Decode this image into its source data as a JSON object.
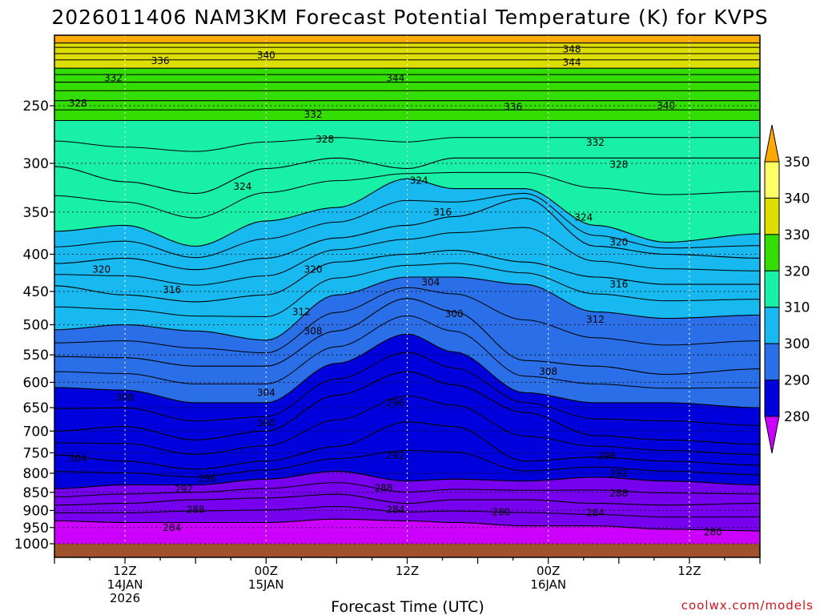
{
  "chart_data": {
    "type": "heatmap",
    "title": "2026011406 NAM3KM Forecast Potential Temperature (K) for KVPS",
    "xlabel": "Forecast Time (UTC)",
    "ylabel": "",
    "credit": "coolwx.com/models",
    "y_scale": "log-pressure",
    "y_range_hpa": [
      1000,
      200
    ],
    "x_range_hours": [
      0,
      60
    ],
    "y_ticks": [
      250,
      300,
      350,
      400,
      450,
      500,
      550,
      600,
      650,
      700,
      750,
      800,
      850,
      900,
      950,
      1000
    ],
    "x_ticks": [
      {
        "hour": 6,
        "lines": [
          "12Z",
          "14JAN",
          "2026"
        ]
      },
      {
        "hour": 18,
        "lines": [
          "00Z",
          "15JAN"
        ]
      },
      {
        "hour": 30,
        "lines": [
          "12Z"
        ]
      },
      {
        "hour": 42,
        "lines": [
          "00Z",
          "16JAN"
        ]
      },
      {
        "hour": 54,
        "lines": [
          "12Z"
        ]
      }
    ],
    "colorbar": {
      "levels": [
        280,
        290,
        300,
        310,
        320,
        330,
        340,
        350
      ],
      "colors": [
        "#cc00ff",
        "#7700ee",
        "#0000dd",
        "#2a6fe8",
        "#18b9f0",
        "#18f0a8",
        "#33dd00",
        "#dddd00",
        "#ffff66",
        "#ffaa00"
      ],
      "extend": "both"
    },
    "levels_k": [
      348,
      344,
      340,
      336,
      332,
      328,
      324,
      320,
      316,
      312,
      308,
      304,
      300,
      296,
      292,
      288,
      284,
      280
    ],
    "isentrope_profiles": [
      {
        "hour": 0,
        "pressures_hpa": [
          205,
          212,
          222,
          232,
          246,
          262,
          303,
          372,
          412,
          442,
          508,
          553,
          610,
          700,
          755,
          840,
          885,
          930
        ]
      },
      {
        "hour": 6,
        "pressures_hpa": [
          205,
          212,
          222,
          232,
          246,
          262,
          318,
          365,
          405,
          455,
          500,
          555,
          615,
          690,
          770,
          830,
          880,
          935
        ]
      },
      {
        "hour": 12,
        "pressures_hpa": [
          205,
          212,
          222,
          232,
          246,
          262,
          330,
          390,
          420,
          465,
          510,
          570,
          640,
          720,
          790,
          830,
          870,
          935
        ]
      },
      {
        "hour": 18,
        "pressures_hpa": [
          205,
          212,
          222,
          232,
          246,
          262,
          305,
          360,
          405,
          455,
          525,
          570,
          640,
          700,
          770,
          815,
          865,
          935
        ]
      },
      {
        "hour": 24,
        "pressures_hpa": [
          205,
          212,
          222,
          232,
          246,
          262,
          295,
          345,
          380,
          410,
          455,
          510,
          565,
          625,
          735,
          795,
          855,
          925
        ]
      },
      {
        "hour": 30,
        "pressures_hpa": [
          205,
          212,
          222,
          232,
          246,
          262,
          305,
          315,
          365,
          400,
          430,
          460,
          515,
          580,
          680,
          820,
          880,
          930
        ]
      },
      {
        "hour": 34,
        "pressures_hpa": [
          205,
          212,
          222,
          232,
          246,
          262,
          295,
          325,
          355,
          395,
          430,
          480,
          545,
          605,
          690,
          815,
          870,
          935
        ]
      },
      {
        "hour": 40,
        "pressures_hpa": [
          205,
          212,
          222,
          232,
          246,
          262,
          295,
          325,
          335,
          410,
          440,
          560,
          620,
          660,
          770,
          820,
          870,
          945
        ]
      },
      {
        "hour": 46,
        "pressures_hpa": [
          205,
          212,
          222,
          232,
          246,
          262,
          295,
          365,
          390,
          430,
          480,
          570,
          640,
          710,
          760,
          810,
          880,
          945
        ]
      },
      {
        "hour": 52,
        "pressures_hpa": [
          205,
          212,
          222,
          232,
          246,
          262,
          295,
          385,
          400,
          440,
          490,
          585,
          640,
          720,
          770,
          820,
          885,
          955
        ]
      },
      {
        "hour": 60,
        "pressures_hpa": [
          205,
          212,
          222,
          232,
          246,
          262,
          295,
          375,
          405,
          440,
          485,
          575,
          650,
          730,
          780,
          830,
          880,
          960
        ]
      }
    ],
    "contour_labels": [
      {
        "text": "340",
        "hour": 18,
        "p": 213
      },
      {
        "text": "336",
        "hour": 9,
        "p": 217
      },
      {
        "text": "332",
        "hour": 5,
        "p": 229
      },
      {
        "text": "328",
        "hour": 2,
        "p": 248
      },
      {
        "text": "344",
        "hour": 29,
        "p": 229
      },
      {
        "text": "348",
        "hour": 44,
        "p": 209
      },
      {
        "text": "344",
        "hour": 44,
        "p": 218
      },
      {
        "text": "336",
        "hour": 39,
        "p": 251
      },
      {
        "text": "340",
        "hour": 52,
        "p": 250
      },
      {
        "text": "332",
        "hour": 22,
        "p": 257
      },
      {
        "text": "328",
        "hour": 23,
        "p": 278
      },
      {
        "text": "332",
        "hour": 46,
        "p": 281
      },
      {
        "text": "328",
        "hour": 48,
        "p": 301
      },
      {
        "text": "324",
        "hour": 16,
        "p": 323
      },
      {
        "text": "324",
        "hour": 31,
        "p": 317
      },
      {
        "text": "324",
        "hour": 45,
        "p": 356
      },
      {
        "text": "316",
        "hour": 33,
        "p": 350
      },
      {
        "text": "320",
        "hour": 48,
        "p": 385
      },
      {
        "text": "320",
        "hour": 4,
        "p": 420
      },
      {
        "text": "320",
        "hour": 22,
        "p": 420
      },
      {
        "text": "316",
        "hour": 10,
        "p": 448
      },
      {
        "text": "304",
        "hour": 32,
        "p": 437
      },
      {
        "text": "316",
        "hour": 48,
        "p": 440
      },
      {
        "text": "312",
        "hour": 21,
        "p": 480
      },
      {
        "text": "300",
        "hour": 34,
        "p": 483
      },
      {
        "text": "312",
        "hour": 46,
        "p": 492
      },
      {
        "text": "308",
        "hour": 22,
        "p": 510
      },
      {
        "text": "308",
        "hour": 42,
        "p": 580
      },
      {
        "text": "308",
        "hour": 6,
        "p": 630
      },
      {
        "text": "304",
        "hour": 18,
        "p": 620
      },
      {
        "text": "296",
        "hour": 29,
        "p": 640
      },
      {
        "text": "300",
        "hour": 18,
        "p": 683
      },
      {
        "text": "304",
        "hour": 2,
        "p": 763
      },
      {
        "text": "292",
        "hour": 29,
        "p": 757
      },
      {
        "text": "296",
        "hour": 47,
        "p": 758
      },
      {
        "text": "296",
        "hour": 13,
        "p": 813
      },
      {
        "text": "292",
        "hour": 48,
        "p": 800
      },
      {
        "text": "292",
        "hour": 11,
        "p": 842
      },
      {
        "text": "288",
        "hour": 28,
        "p": 838
      },
      {
        "text": "288",
        "hour": 48,
        "p": 852
      },
      {
        "text": "288",
        "hour": 12,
        "p": 898
      },
      {
        "text": "284",
        "hour": 29,
        "p": 898
      },
      {
        "text": "280",
        "hour": 38,
        "p": 905
      },
      {
        "text": "284",
        "hour": 46,
        "p": 907
      },
      {
        "text": "284",
        "hour": 10,
        "p": 950
      },
      {
        "text": "280",
        "hour": 56,
        "p": 964
      }
    ]
  }
}
